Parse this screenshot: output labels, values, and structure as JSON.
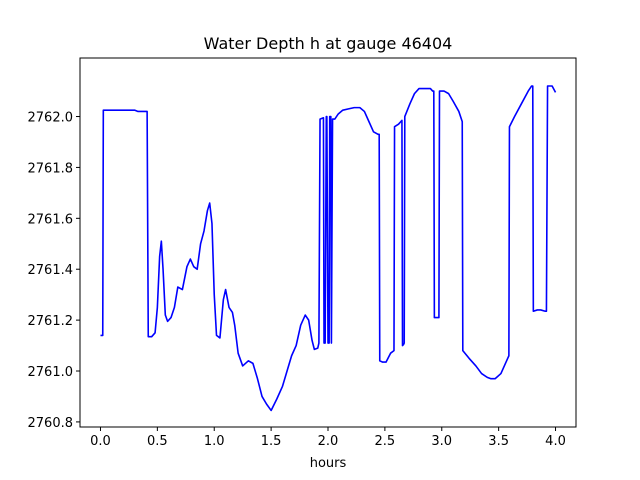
{
  "chart_data": {
    "type": "line",
    "title": "Water Depth h at gauge 46404",
    "xlabel": "hours",
    "ylabel": "",
    "xlim": [
      -0.18,
      4.18
    ],
    "ylim": [
      2760.78,
      2762.23
    ],
    "xticks": [
      0.0,
      0.5,
      1.0,
      1.5,
      2.0,
      2.5,
      3.0,
      3.5,
      4.0
    ],
    "xtick_labels": [
      "0.0",
      "0.5",
      "1.0",
      "1.5",
      "2.0",
      "2.5",
      "3.0",
      "3.5",
      "4.0"
    ],
    "yticks": [
      2760.8,
      2761.0,
      2761.2,
      2761.4,
      2761.6,
      2761.8,
      2762.0
    ],
    "ytick_labels": [
      "2760.8",
      "2761.0",
      "2761.2",
      "2761.4",
      "2761.6",
      "2761.8",
      "2762.0"
    ],
    "grid": false,
    "series": [
      {
        "name": "",
        "color": "#0000ff",
        "x": [
          0.0,
          0.02,
          0.025,
          0.1,
          0.2,
          0.3,
          0.33,
          0.4,
          0.41,
          0.42,
          0.45,
          0.48,
          0.5,
          0.52,
          0.535,
          0.55,
          0.57,
          0.59,
          0.62,
          0.65,
          0.68,
          0.72,
          0.76,
          0.79,
          0.82,
          0.85,
          0.88,
          0.91,
          0.94,
          0.96,
          0.98,
          1.0,
          1.02,
          1.05,
          1.08,
          1.1,
          1.13,
          1.16,
          1.18,
          1.21,
          1.25,
          1.3,
          1.34,
          1.38,
          1.42,
          1.46,
          1.5,
          1.55,
          1.6,
          1.64,
          1.68,
          1.72,
          1.76,
          1.8,
          1.83,
          1.86,
          1.88,
          1.91,
          1.92,
          1.93,
          1.96,
          1.965,
          1.975,
          1.985,
          1.99,
          2.0,
          2.01,
          2.015,
          2.025,
          2.03,
          2.04,
          2.06,
          2.09,
          2.13,
          2.18,
          2.23,
          2.28,
          2.32,
          2.36,
          2.4,
          2.44,
          2.45,
          2.455,
          2.48,
          2.51,
          2.55,
          2.58,
          2.585,
          2.62,
          2.65,
          2.655,
          2.665,
          2.67,
          2.675,
          2.72,
          2.76,
          2.8,
          2.85,
          2.9,
          2.92,
          2.93,
          2.935,
          2.975,
          2.98,
          3.02,
          3.06,
          3.1,
          3.15,
          3.18,
          3.185,
          3.24,
          3.3,
          3.35,
          3.4,
          3.43,
          3.47,
          3.52,
          3.59,
          3.595,
          3.64,
          3.7,
          3.76,
          3.79,
          3.8,
          3.805,
          3.84,
          3.87,
          3.91,
          3.92,
          3.93,
          3.97,
          4.0
        ],
        "y": [
          2761.14,
          2761.14,
          2762.025,
          2762.025,
          2762.025,
          2762.025,
          2762.02,
          2762.02,
          2762.02,
          2761.135,
          2761.135,
          2761.15,
          2761.25,
          2761.45,
          2761.51,
          2761.4,
          2761.22,
          2761.195,
          2761.21,
          2761.25,
          2761.33,
          2761.32,
          2761.41,
          2761.44,
          2761.41,
          2761.4,
          2761.5,
          2761.55,
          2761.63,
          2761.66,
          2761.58,
          2761.3,
          2761.14,
          2761.13,
          2761.28,
          2761.32,
          2761.25,
          2761.23,
          2761.18,
          2761.07,
          2761.02,
          2761.04,
          2761.03,
          2760.97,
          2760.9,
          2760.87,
          2760.845,
          2760.89,
          2760.94,
          2761.0,
          2761.06,
          2761.1,
          2761.18,
          2761.22,
          2761.2,
          2761.12,
          2761.085,
          2761.09,
          2761.11,
          2761.99,
          2761.995,
          2761.11,
          2761.11,
          2762.0,
          2762.0,
          2761.11,
          2761.11,
          2762.0,
          2762.0,
          2761.11,
          2761.99,
          2761.99,
          2762.01,
          2762.025,
          2762.03,
          2762.035,
          2762.035,
          2762.02,
          2761.98,
          2761.94,
          2761.93,
          2761.93,
          2761.04,
          2761.035,
          2761.035,
          2761.07,
          2761.08,
          2761.96,
          2761.97,
          2761.985,
          2761.1,
          2761.105,
          2761.11,
          2762.0,
          2762.05,
          2762.09,
          2762.11,
          2762.11,
          2762.11,
          2762.1,
          2762.1,
          2761.21,
          2761.21,
          2762.1,
          2762.1,
          2762.09,
          2762.06,
          2762.02,
          2761.98,
          2761.08,
          2761.05,
          2761.02,
          2760.99,
          2760.975,
          2760.97,
          2760.97,
          2760.99,
          2761.06,
          2761.96,
          2762.0,
          2762.05,
          2762.1,
          2762.12,
          2762.12,
          2761.235,
          2761.24,
          2761.24,
          2761.235,
          2761.235,
          2762.12,
          2762.12,
          2762.095
        ]
      }
    ]
  }
}
